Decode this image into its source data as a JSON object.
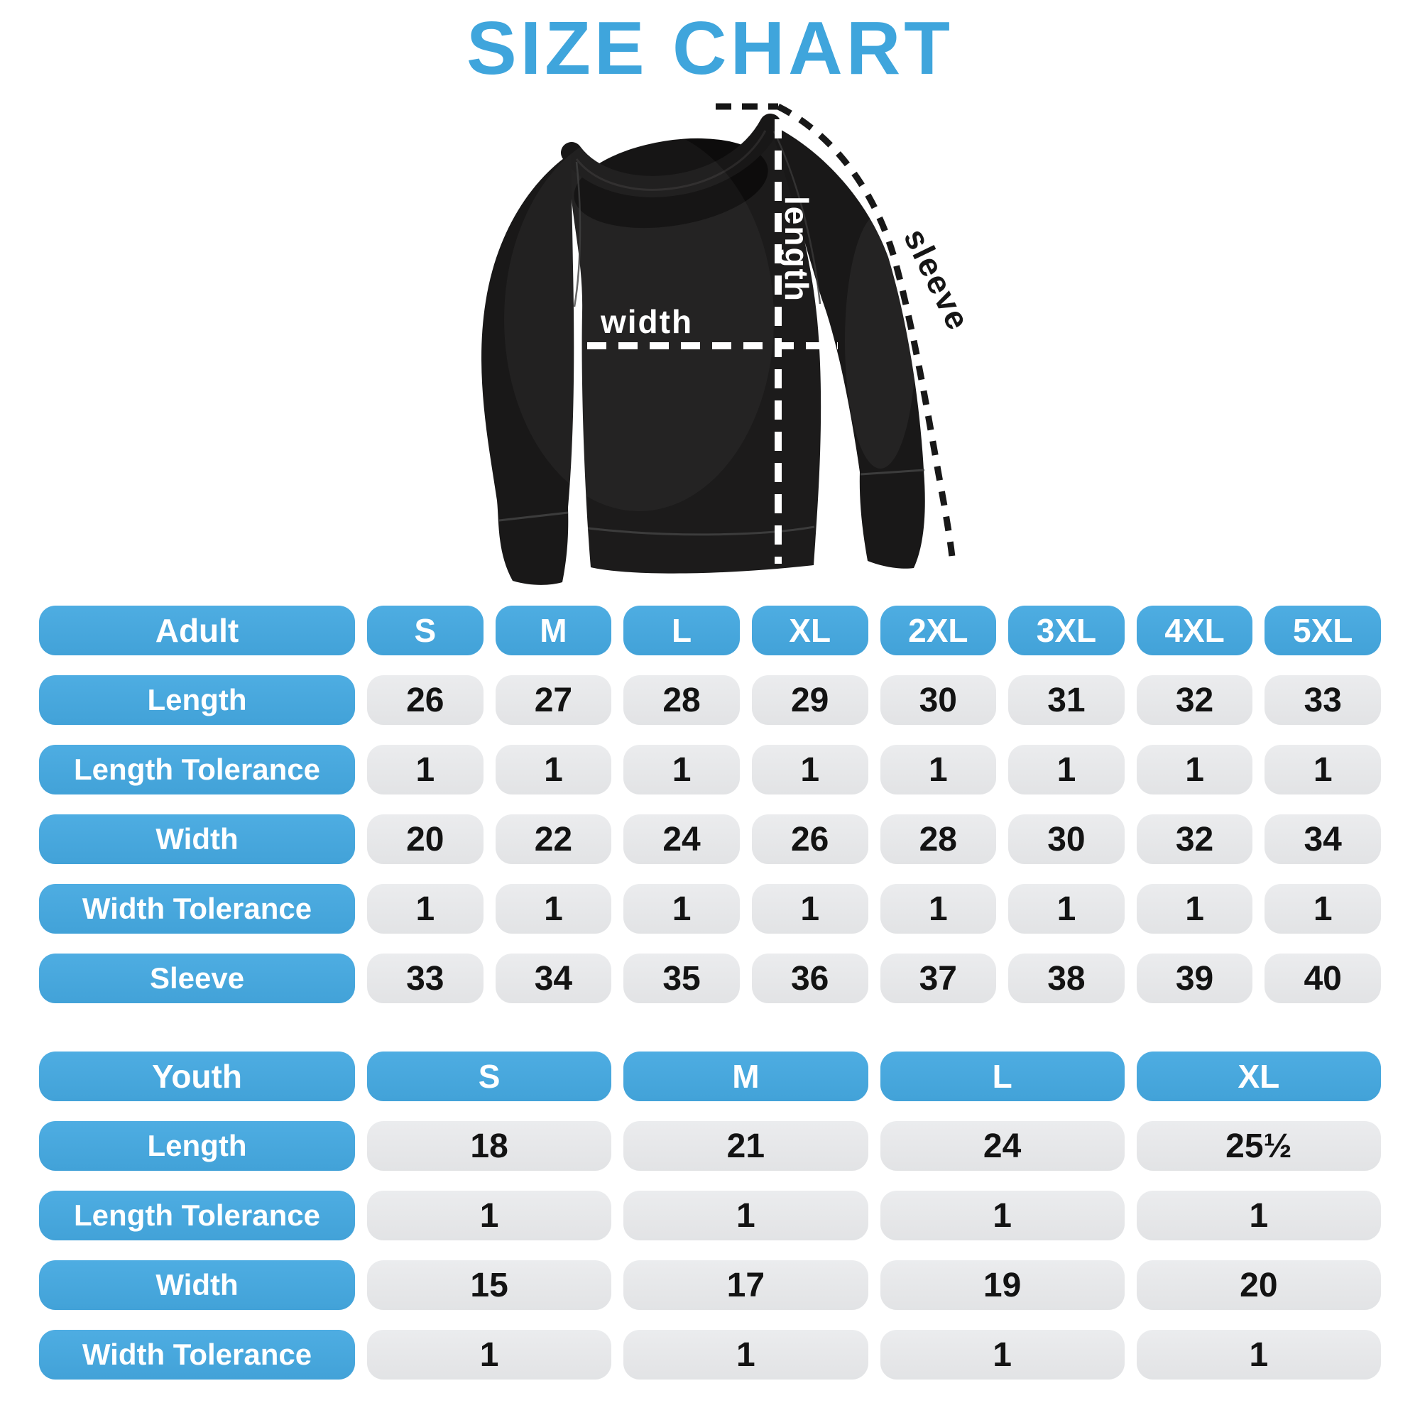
{
  "title": "SIZE CHART",
  "colors": {
    "accent_blue": "#45A7DB",
    "title_blue": "#3FA5DC",
    "cell_grey": "#E5E6E8",
    "cell_text": "#131313",
    "pill_text": "#FFFFFF",
    "garment_black": "#1B1A1A"
  },
  "diagram": {
    "garment": "black crewneck sweatshirt with dashed measurement guides",
    "labels": {
      "length": "length",
      "width": "width",
      "sleeve": "sleeve"
    }
  },
  "adult_table": {
    "header_label": "Adult",
    "sizes": [
      "S",
      "M",
      "L",
      "XL",
      "2XL",
      "3XL",
      "4XL",
      "5XL"
    ],
    "rows": [
      {
        "label": "Length",
        "values": [
          "26",
          "27",
          "28",
          "29",
          "30",
          "31",
          "32",
          "33"
        ]
      },
      {
        "label": "Length Tolerance",
        "values": [
          "1",
          "1",
          "1",
          "1",
          "1",
          "1",
          "1",
          "1"
        ]
      },
      {
        "label": "Width",
        "values": [
          "20",
          "22",
          "24",
          "26",
          "28",
          "30",
          "32",
          "34"
        ]
      },
      {
        "label": "Width Tolerance",
        "values": [
          "1",
          "1",
          "1",
          "1",
          "1",
          "1",
          "1",
          "1"
        ]
      },
      {
        "label": "Sleeve",
        "values": [
          "33",
          "34",
          "35",
          "36",
          "37",
          "38",
          "39",
          "40"
        ]
      }
    ]
  },
  "youth_table": {
    "header_label": "Youth",
    "sizes": [
      "S",
      "M",
      "L",
      "XL"
    ],
    "rows": [
      {
        "label": "Length",
        "values": [
          "18",
          "21",
          "24",
          "25½"
        ]
      },
      {
        "label": "Length Tolerance",
        "values": [
          "1",
          "1",
          "1",
          "1"
        ]
      },
      {
        "label": "Width",
        "values": [
          "15",
          "17",
          "19",
          "20"
        ]
      },
      {
        "label": "Width Tolerance",
        "values": [
          "1",
          "1",
          "1",
          "1"
        ]
      }
    ]
  },
  "chart_data": [
    {
      "type": "table",
      "title": "Adult",
      "columns": [
        "Adult",
        "S",
        "M",
        "L",
        "XL",
        "2XL",
        "3XL",
        "4XL",
        "5XL"
      ],
      "rows": [
        [
          "Length",
          26,
          27,
          28,
          29,
          30,
          31,
          32,
          33
        ],
        [
          "Length Tolerance",
          1,
          1,
          1,
          1,
          1,
          1,
          1,
          1
        ],
        [
          "Width",
          20,
          22,
          24,
          26,
          28,
          30,
          32,
          34
        ],
        [
          "Width Tolerance",
          1,
          1,
          1,
          1,
          1,
          1,
          1,
          1
        ],
        [
          "Sleeve",
          33,
          34,
          35,
          36,
          37,
          38,
          39,
          40
        ]
      ]
    },
    {
      "type": "table",
      "title": "Youth",
      "columns": [
        "Youth",
        "S",
        "M",
        "L",
        "XL"
      ],
      "rows": [
        [
          "Length",
          18,
          21,
          24,
          25.5
        ],
        [
          "Length Tolerance",
          1,
          1,
          1,
          1
        ],
        [
          "Width",
          15,
          17,
          19,
          20
        ],
        [
          "Width Tolerance",
          1,
          1,
          1,
          1
        ]
      ]
    }
  ]
}
